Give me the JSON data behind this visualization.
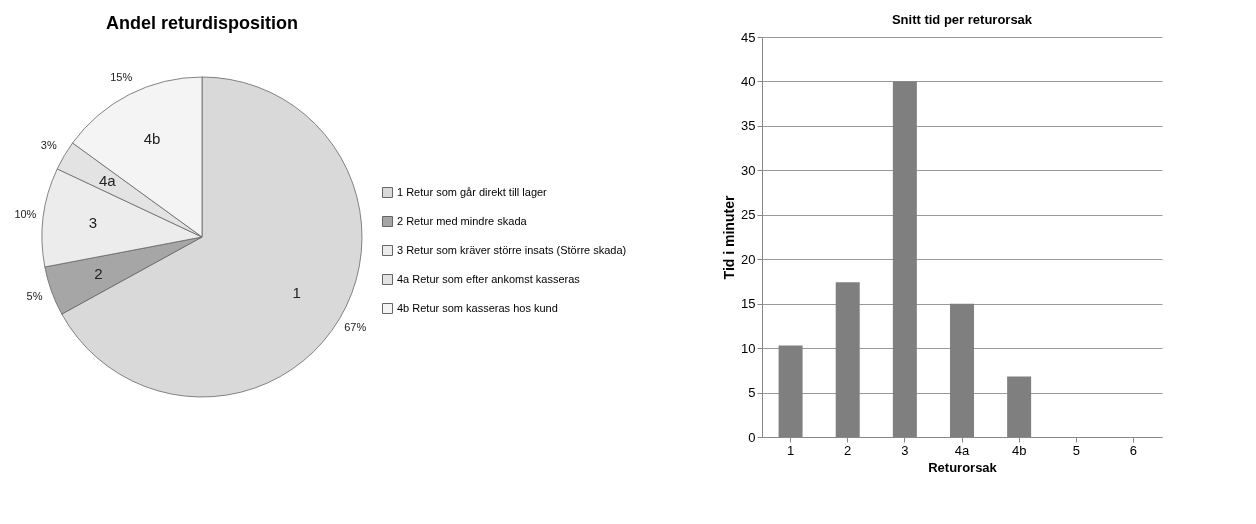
{
  "chart_data": [
    {
      "type": "pie",
      "title": "Andel returdisposition",
      "categories": [
        "1 Retur som går direkt till lager",
        "2 Retur med mindre skada",
        "3 Retur som kräver större insats (Större skada)",
        "4a Retur som efter ankomst kasseras",
        "4b Retur som kasseras hos kund"
      ],
      "values": [
        67,
        5,
        10,
        3,
        15
      ],
      "colors": [
        "#d9d9d9",
        "#a6a6a6",
        "#ececec",
        "#e3e3e3",
        "#f4f4f4"
      ],
      "value_labels": [
        "67%",
        "5%",
        "10%",
        "3%",
        "15%"
      ],
      "annotations": [
        "1",
        "2",
        "3",
        "4a",
        "4b"
      ],
      "legend": "right"
    },
    {
      "type": "bar",
      "title": "Snitt tid per returorsak",
      "xlabel": "Returorsak",
      "ylabel": "Tid i minuter",
      "categories": [
        "1",
        "2",
        "3",
        "4a",
        "4b",
        "5",
        "6"
      ],
      "values": [
        10.3,
        17.4,
        40,
        15,
        6.8,
        null,
        null
      ],
      "color": "#7f7f7f",
      "ylim": [
        0,
        45
      ],
      "yticks": [
        0,
        5,
        10,
        15,
        20,
        25,
        30,
        35,
        40,
        45
      ],
      "grid": "y"
    }
  ]
}
